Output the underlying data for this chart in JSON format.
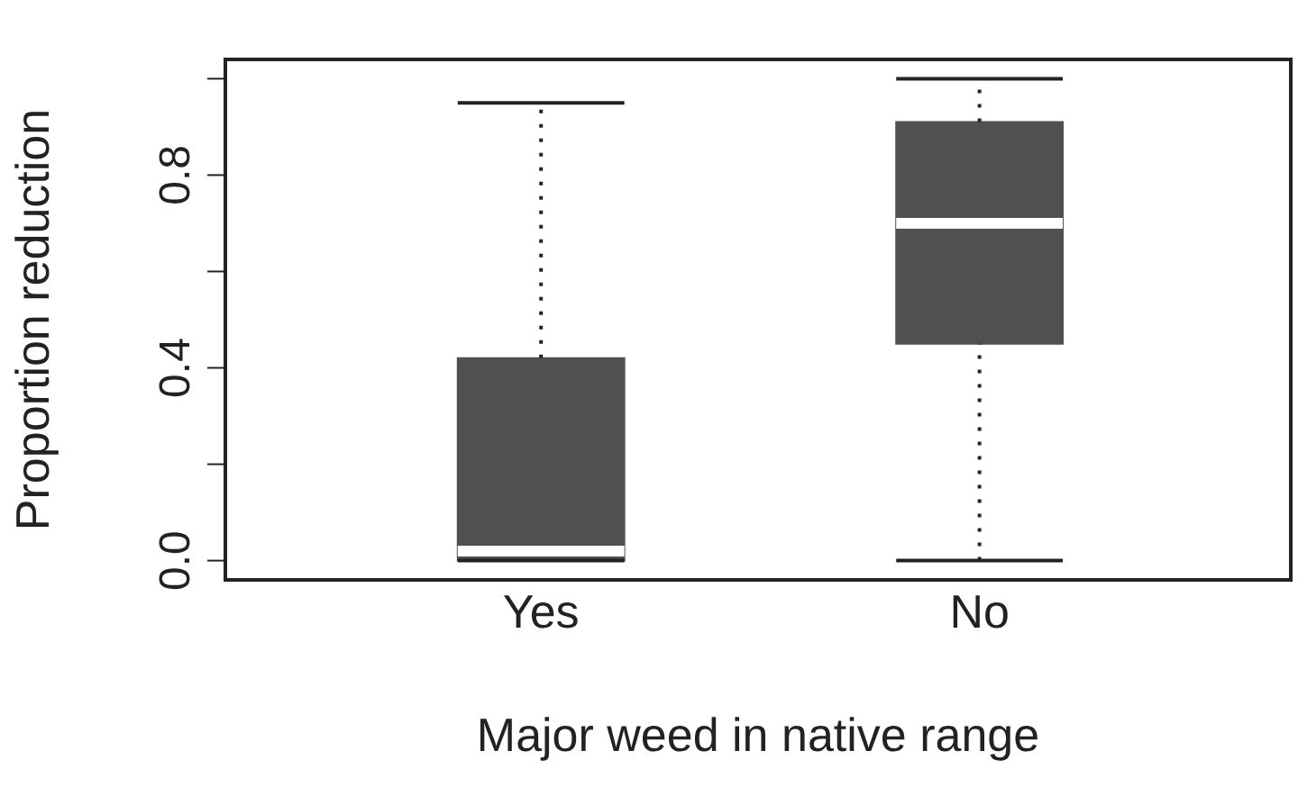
{
  "chart_data": {
    "type": "box",
    "xlabel": "Major weed in native range",
    "ylabel": "Proportion reduction",
    "categories": [
      "Yes",
      "No"
    ],
    "boxes": [
      {
        "low": 0,
        "q1": 0,
        "median": 0.02,
        "q3": 0.42,
        "high": 0.95
      },
      {
        "low": 0,
        "q1": 0.45,
        "median": 0.7,
        "q3": 0.91,
        "high": 1.0
      }
    ],
    "color": "#505050",
    "ylim": [
      -0.04,
      1.04
    ],
    "yticks": [
      {
        "value": 0,
        "label": "0.0"
      },
      {
        "value": 0.2,
        "label": null
      },
      {
        "value": 0.4,
        "label": "0.4"
      },
      {
        "value": 0.6,
        "label": null
      },
      {
        "value": 0.8,
        "label": "0.8"
      },
      {
        "value": 1.0,
        "label": null
      }
    ],
    "grid": false
  }
}
